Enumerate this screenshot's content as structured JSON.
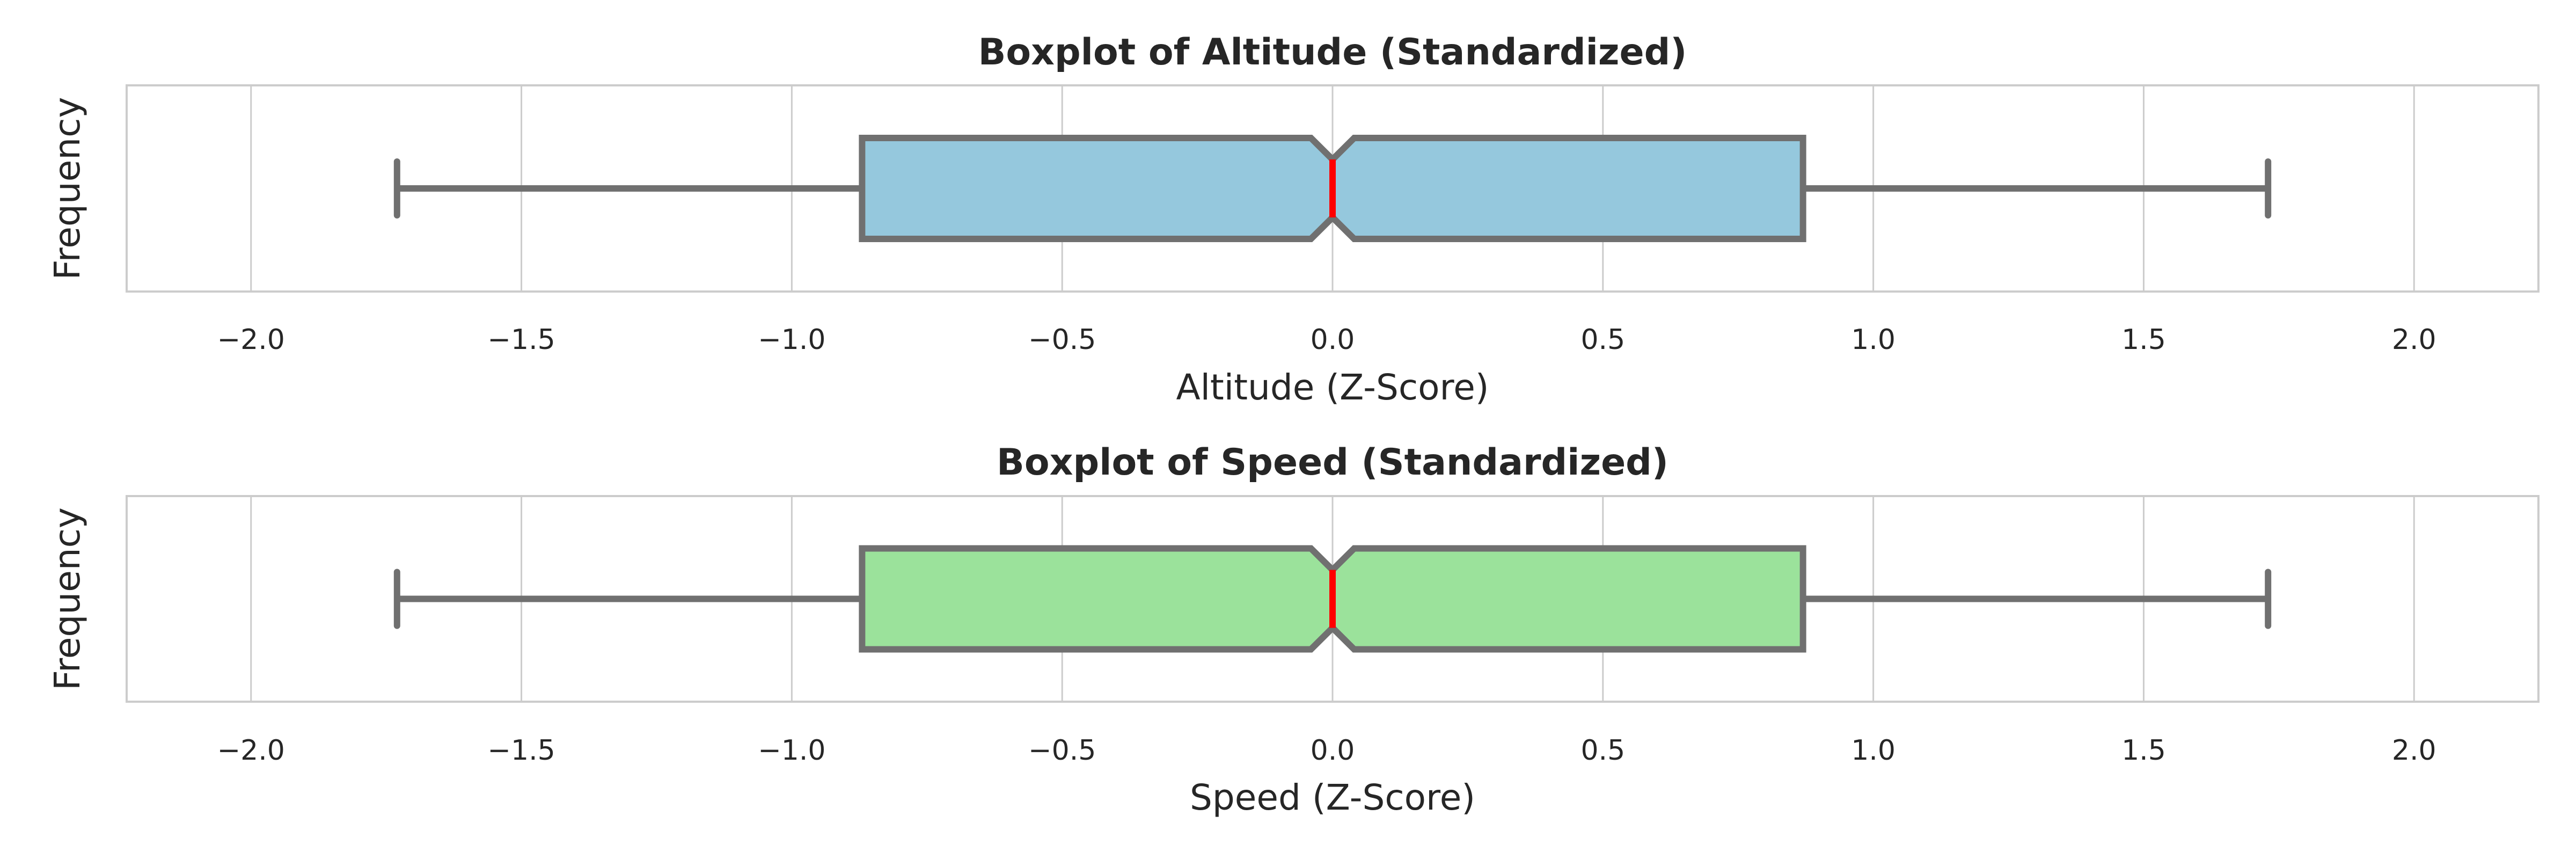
{
  "chart_data": [
    {
      "type": "boxplot",
      "title": "Boxplot of Altitude (Standardized)",
      "xlabel": "Altitude (Z-Score)",
      "ylabel": "Frequency",
      "xlim": [
        -2.23,
        2.23
      ],
      "xticks": [
        -2.0,
        -1.5,
        -1.0,
        -0.5,
        0.0,
        0.5,
        1.0,
        1.5,
        2.0
      ],
      "xtick_labels": [
        "−2.0",
        "−1.5",
        "−1.0",
        "−0.5",
        "0.0",
        "0.5",
        "1.0",
        "1.5",
        "2.0"
      ],
      "grid": true,
      "notched": true,
      "box_color": "#95c8dd",
      "median_color": "#ff0000",
      "line_color": "#707070",
      "stats": {
        "whisker_low": -1.73,
        "q1": -0.87,
        "median": 0.0,
        "q3": 0.87,
        "whisker_high": 1.73,
        "notch_low": -0.04,
        "notch_high": 0.04
      }
    },
    {
      "type": "boxplot",
      "title": "Boxplot of Speed (Standardized)",
      "xlabel": "Speed (Z-Score)",
      "ylabel": "Frequency",
      "xlim": [
        -2.23,
        2.23
      ],
      "xticks": [
        -2.0,
        -1.5,
        -1.0,
        -0.5,
        0.0,
        0.5,
        1.0,
        1.5,
        2.0
      ],
      "xtick_labels": [
        "−2.0",
        "−1.5",
        "−1.0",
        "−0.5",
        "0.0",
        "0.5",
        "1.0",
        "1.5",
        "2.0"
      ],
      "grid": true,
      "notched": true,
      "box_color": "#9be29b",
      "median_color": "#ff0000",
      "line_color": "#707070",
      "stats": {
        "whisker_low": -1.73,
        "q1": -0.87,
        "median": 0.0,
        "q3": 0.87,
        "whisker_high": 1.73,
        "notch_low": -0.04,
        "notch_high": 0.04
      }
    }
  ]
}
